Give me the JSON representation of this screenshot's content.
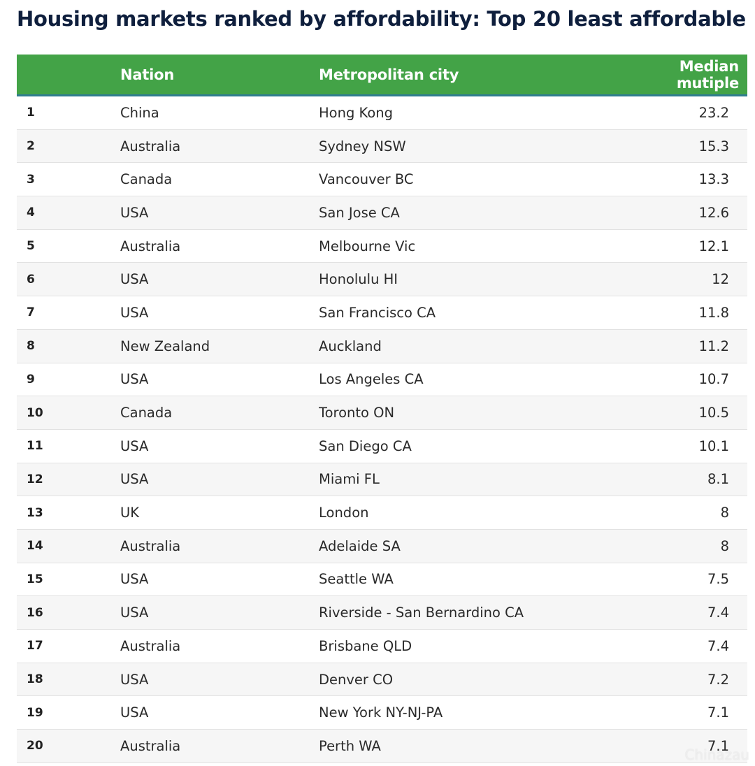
{
  "title": "Housing markets ranked by affordability: Top 20 least affordable",
  "colors": {
    "header_bg": "#43a347",
    "header_border": "#2f7d8f",
    "title": "#0f1f3d"
  },
  "watermark": "Chinazau",
  "chart_data": {
    "type": "table",
    "columns": [
      "",
      "Nation",
      "Metropolitan city",
      "Median mutiple"
    ],
    "rows": [
      {
        "rank": "1",
        "nation": "China",
        "city": "Hong Kong",
        "value": "23.2"
      },
      {
        "rank": "2",
        "nation": "Australia",
        "city": "Sydney NSW",
        "value": "15.3"
      },
      {
        "rank": "3",
        "nation": "Canada",
        "city": "Vancouver BC",
        "value": "13.3"
      },
      {
        "rank": "4",
        "nation": "USA",
        "city": "San Jose CA",
        "value": "12.6"
      },
      {
        "rank": "5",
        "nation": "Australia",
        "city": "Melbourne Vic",
        "value": "12.1"
      },
      {
        "rank": "6",
        "nation": "USA",
        "city": "Honolulu HI",
        "value": "12"
      },
      {
        "rank": "7",
        "nation": "USA",
        "city": "San Francisco CA",
        "value": "11.8"
      },
      {
        "rank": "8",
        "nation": "New Zealand",
        "city": "Auckland",
        "value": "11.2"
      },
      {
        "rank": "9",
        "nation": "USA",
        "city": "Los Angeles CA",
        "value": "10.7"
      },
      {
        "rank": "10",
        "nation": "Canada",
        "city": "Toronto ON",
        "value": "10.5"
      },
      {
        "rank": "11",
        "nation": "USA",
        "city": "San Diego CA",
        "value": "10.1"
      },
      {
        "rank": "12",
        "nation": "USA",
        "city": "Miami FL",
        "value": "8.1"
      },
      {
        "rank": "13",
        "nation": "UK",
        "city": "London",
        "value": "8"
      },
      {
        "rank": "14",
        "nation": "Australia",
        "city": "Adelaide SA",
        "value": "8"
      },
      {
        "rank": "15",
        "nation": "USA",
        "city": "Seattle WA",
        "value": "7.5"
      },
      {
        "rank": "16",
        "nation": "USA",
        "city": "Riverside - San Bernardino CA",
        "value": "7.4"
      },
      {
        "rank": "17",
        "nation": "Australia",
        "city": "Brisbane QLD",
        "value": "7.4"
      },
      {
        "rank": "18",
        "nation": "USA",
        "city": "Denver CO",
        "value": "7.2"
      },
      {
        "rank": "19",
        "nation": "USA",
        "city": "New York NY-NJ-PA",
        "value": "7.1"
      },
      {
        "rank": "20",
        "nation": "Australia",
        "city": "Perth WA",
        "value": "7.1"
      }
    ]
  }
}
